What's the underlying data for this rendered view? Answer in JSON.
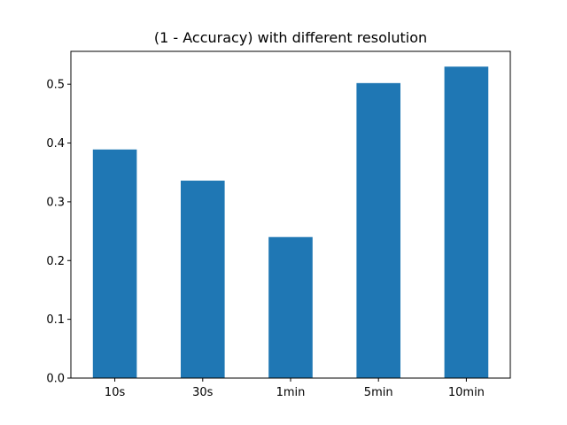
{
  "chart_data": {
    "type": "bar",
    "title": "(1 - Accuracy) with different resolution",
    "xlabel": "",
    "ylabel": "",
    "categories": [
      "10s",
      "30s",
      "1min",
      "5min",
      "10min"
    ],
    "values": [
      0.389,
      0.336,
      0.24,
      0.502,
      0.53
    ],
    "ylim": [
      0,
      0.556
    ],
    "yticks": [
      "0.0",
      "0.1",
      "0.2",
      "0.3",
      "0.4",
      "0.5"
    ],
    "bar_color": "#1f77b4",
    "grid": false,
    "legend": "none"
  }
}
